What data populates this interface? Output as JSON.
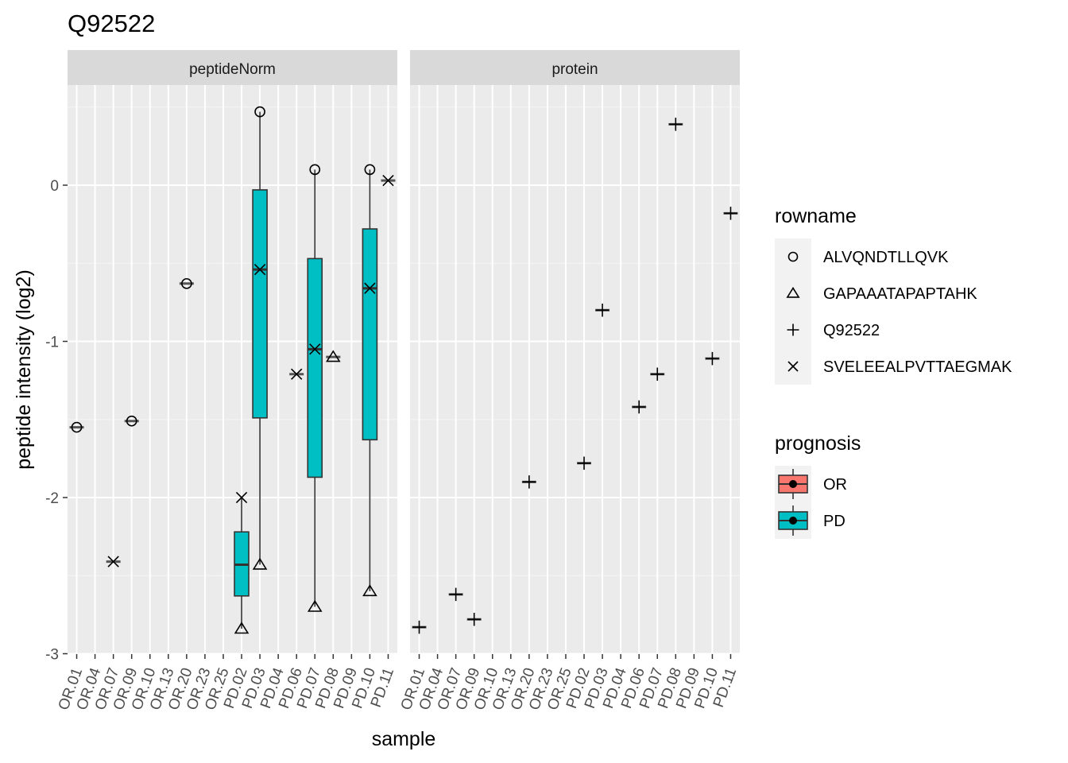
{
  "chart_data": {
    "type": "boxplot",
    "title": "Q92522",
    "xlabel": "sample",
    "ylabel": "peptide intensity (log2)",
    "ylim": [
      -3,
      0.6
    ],
    "yticks": [
      -3,
      -2,
      -1,
      0
    ],
    "ytick_labels": [
      "-3",
      "-2",
      "-1",
      "0"
    ],
    "grid": true,
    "facets": [
      "peptideNorm",
      "protein"
    ],
    "samples": [
      "OR.01",
      "OR.04",
      "OR.07",
      "OR.09",
      "OR.10",
      "OR.13",
      "OR.20",
      "OR.23",
      "OR.25",
      "PD.02",
      "PD.03",
      "PD.04",
      "PD.06",
      "PD.07",
      "PD.08",
      "PD.09",
      "PD.10",
      "PD.11"
    ],
    "legend_rowname": {
      "title": "rowname",
      "items": [
        {
          "label": "ALVQNDTLLQVK",
          "shape": "circle"
        },
        {
          "label": "GAPAAATAPAPTAHK",
          "shape": "triangle"
        },
        {
          "label": "Q92522",
          "shape": "plus"
        },
        {
          "label": "SVELEEALPVTTAEGMAK",
          "shape": "cross"
        }
      ]
    },
    "legend_prognosis": {
      "title": "prognosis",
      "items": [
        {
          "label": "OR",
          "color": "#F8766D"
        },
        {
          "label": "PD",
          "color": "#00BFC4"
        }
      ]
    },
    "panels": [
      {
        "facet": "peptideNorm",
        "boxes": [
          {
            "sample": "PD.02",
            "q1": -2.63,
            "median": -2.43,
            "q3": -2.22,
            "lower": -2.84,
            "upper": -2.0,
            "group": "PD"
          },
          {
            "sample": "PD.03",
            "q1": -1.49,
            "median": -0.54,
            "q3": -0.03,
            "lower": -2.43,
            "upper": 0.47,
            "group": "PD"
          },
          {
            "sample": "PD.07",
            "q1": -1.87,
            "median": -1.05,
            "q3": -0.47,
            "lower": -2.7,
            "upper": 0.1,
            "group": "PD"
          },
          {
            "sample": "PD.10",
            "q1": -1.63,
            "median": -0.66,
            "q3": -0.28,
            "lower": -2.6,
            "upper": 0.1,
            "group": "PD"
          }
        ],
        "points": [
          {
            "sample": "OR.01",
            "y": -1.55,
            "shape": "circle",
            "group": "OR"
          },
          {
            "sample": "OR.07",
            "y": -2.41,
            "shape": "cross",
            "group": "OR"
          },
          {
            "sample": "OR.09",
            "y": -1.51,
            "shape": "circle",
            "group": "OR"
          },
          {
            "sample": "OR.20",
            "y": -0.63,
            "shape": "circle",
            "group": "OR"
          },
          {
            "sample": "PD.02",
            "y": -2.84,
            "shape": "triangle",
            "group": "PD"
          },
          {
            "sample": "PD.02",
            "y": -2.0,
            "shape": "cross",
            "group": "PD"
          },
          {
            "sample": "PD.03",
            "y": 0.47,
            "shape": "circle",
            "group": "PD"
          },
          {
            "sample": "PD.03",
            "y": -0.54,
            "shape": "cross",
            "group": "PD"
          },
          {
            "sample": "PD.03",
            "y": -2.43,
            "shape": "triangle",
            "group": "PD"
          },
          {
            "sample": "PD.06",
            "y": -1.21,
            "shape": "cross",
            "group": "PD"
          },
          {
            "sample": "PD.07",
            "y": 0.1,
            "shape": "circle",
            "group": "PD"
          },
          {
            "sample": "PD.07",
            "y": -1.05,
            "shape": "cross",
            "group": "PD"
          },
          {
            "sample": "PD.07",
            "y": -2.7,
            "shape": "triangle",
            "group": "PD"
          },
          {
            "sample": "PD.08",
            "y": -1.1,
            "shape": "triangle",
            "group": "PD"
          },
          {
            "sample": "PD.10",
            "y": 0.1,
            "shape": "circle",
            "group": "PD"
          },
          {
            "sample": "PD.10",
            "y": -0.66,
            "shape": "cross",
            "group": "PD"
          },
          {
            "sample": "PD.10",
            "y": -2.6,
            "shape": "triangle",
            "group": "PD"
          },
          {
            "sample": "PD.11",
            "y": 0.03,
            "shape": "cross",
            "group": "PD"
          }
        ]
      },
      {
        "facet": "protein",
        "boxes": [],
        "points": [
          {
            "sample": "OR.01",
            "y": -2.83,
            "shape": "plus",
            "group": "OR"
          },
          {
            "sample": "OR.07",
            "y": -2.62,
            "shape": "plus",
            "group": "OR"
          },
          {
            "sample": "OR.09",
            "y": -2.78,
            "shape": "plus",
            "group": "OR"
          },
          {
            "sample": "OR.20",
            "y": -1.9,
            "shape": "plus",
            "group": "OR"
          },
          {
            "sample": "PD.02",
            "y": -1.78,
            "shape": "plus",
            "group": "PD"
          },
          {
            "sample": "PD.03",
            "y": -0.8,
            "shape": "plus",
            "group": "PD"
          },
          {
            "sample": "PD.06",
            "y": -1.42,
            "shape": "plus",
            "group": "PD"
          },
          {
            "sample": "PD.07",
            "y": -1.21,
            "shape": "plus",
            "group": "PD"
          },
          {
            "sample": "PD.08",
            "y": 0.39,
            "shape": "plus",
            "group": "PD"
          },
          {
            "sample": "PD.10",
            "y": -1.11,
            "shape": "plus",
            "group": "PD"
          },
          {
            "sample": "PD.11",
            "y": -0.18,
            "shape": "plus",
            "group": "PD"
          }
        ]
      }
    ]
  }
}
